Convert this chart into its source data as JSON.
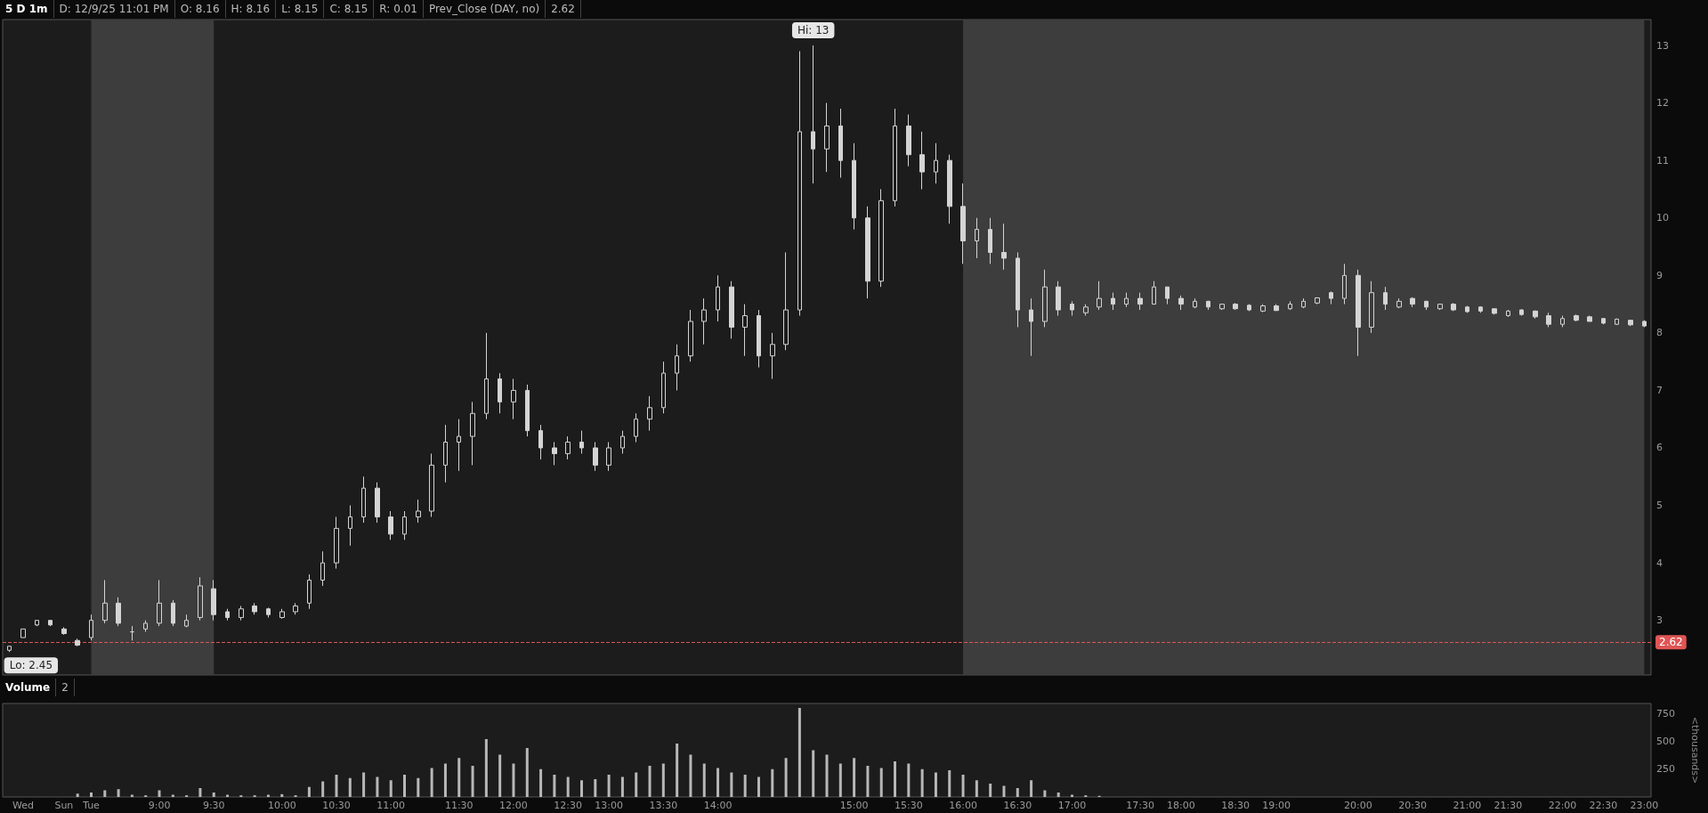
{
  "chart_data": [
    {
      "type": "candlestick",
      "title": "5 D 1m",
      "annotations": [
        "D: 12/9/25 11:01 PM",
        "O: 8.16",
        "H: 8.16",
        "L: 8.15",
        "C: 8.15",
        "R: 0.01",
        "Prev_Close (DAY, no)",
        "2.62",
        {
          "text": "Hi: 13",
          "y": 13
        },
        "Lo: 2.45"
      ],
      "categories": [
        null,
        "Wed",
        null,
        null,
        "Sun",
        null,
        "Tue",
        null,
        null,
        null,
        null,
        "9:00",
        null,
        null,
        null,
        "9:30",
        null,
        null,
        null,
        null,
        "10:00",
        null,
        null,
        null,
        "10:30",
        null,
        null,
        null,
        "11:00",
        null,
        null,
        null,
        null,
        "11:30",
        null,
        null,
        null,
        "12:00",
        null,
        null,
        null,
        "12:30",
        null,
        null,
        "13:00",
        null,
        null,
        null,
        "13:30",
        null,
        null,
        null,
        "14:00",
        null,
        null,
        null,
        null,
        null,
        null,
        null,
        null,
        null,
        "15:00",
        null,
        null,
        null,
        "15:30",
        null,
        null,
        null,
        "16:00",
        null,
        null,
        null,
        "16:30",
        null,
        null,
        null,
        "17:00",
        null,
        null,
        null,
        null,
        "17:30",
        null,
        null,
        "18:00",
        null,
        null,
        null,
        "18:30",
        null,
        null,
        "19:00",
        null,
        null,
        null,
        null,
        null,
        "20:00",
        null,
        null,
        null,
        "20:30",
        null,
        null,
        null,
        "21:00",
        null,
        null,
        "21:30",
        null,
        null,
        null,
        "22:00",
        null,
        null,
        "22:30",
        null,
        null,
        "23:00"
      ],
      "ohlc": [
        [
          2.48,
          2.55,
          2.45,
          2.55
        ],
        [
          2.7,
          2.85,
          2.7,
          2.85
        ],
        [
          2.92,
          3.0,
          2.9,
          3.0
        ],
        [
          3.0,
          3.0,
          2.9,
          2.92
        ],
        [
          2.85,
          2.88,
          2.75,
          2.77
        ],
        [
          2.65,
          2.68,
          2.55,
          2.57
        ],
        [
          2.7,
          3.1,
          2.65,
          3.0
        ],
        [
          3.0,
          3.7,
          2.95,
          3.3
        ],
        [
          3.3,
          3.4,
          2.9,
          2.95
        ],
        [
          2.8,
          2.9,
          2.65,
          2.8
        ],
        [
          2.85,
          3.0,
          2.8,
          2.95
        ],
        [
          2.95,
          3.7,
          2.9,
          3.3
        ],
        [
          3.3,
          3.35,
          2.9,
          2.95
        ],
        [
          2.9,
          3.1,
          2.88,
          3.0
        ],
        [
          3.05,
          3.75,
          3.0,
          3.6
        ],
        [
          3.55,
          3.7,
          3.0,
          3.1
        ],
        [
          3.15,
          3.2,
          3.0,
          3.05
        ],
        [
          3.05,
          3.25,
          3.0,
          3.2
        ],
        [
          3.25,
          3.3,
          3.1,
          3.15
        ],
        [
          3.2,
          3.22,
          3.05,
          3.1
        ],
        [
          3.05,
          3.2,
          3.03,
          3.15
        ],
        [
          3.15,
          3.3,
          3.1,
          3.25
        ],
        [
          3.3,
          3.8,
          3.2,
          3.7
        ],
        [
          3.7,
          4.2,
          3.6,
          4.0
        ],
        [
          4.0,
          4.8,
          3.9,
          4.6
        ],
        [
          4.6,
          5.0,
          4.3,
          4.8
        ],
        [
          4.8,
          5.5,
          4.7,
          5.3
        ],
        [
          5.3,
          5.4,
          4.7,
          4.8
        ],
        [
          4.8,
          4.9,
          4.4,
          4.5
        ],
        [
          4.5,
          4.9,
          4.4,
          4.8
        ],
        [
          4.8,
          5.1,
          4.7,
          4.9
        ],
        [
          4.9,
          5.9,
          4.8,
          5.7
        ],
        [
          5.7,
          6.4,
          5.4,
          6.1
        ],
        [
          6.1,
          6.5,
          5.6,
          6.2
        ],
        [
          6.2,
          6.8,
          5.7,
          6.6
        ],
        [
          6.6,
          8.0,
          6.5,
          7.2
        ],
        [
          7.2,
          7.3,
          6.6,
          6.8
        ],
        [
          6.8,
          7.2,
          6.5,
          7.0
        ],
        [
          7.0,
          7.1,
          6.2,
          6.3
        ],
        [
          6.3,
          6.4,
          5.8,
          6.0
        ],
        [
          6.0,
          6.1,
          5.7,
          5.9
        ],
        [
          5.9,
          6.2,
          5.8,
          6.1
        ],
        [
          6.1,
          6.3,
          5.9,
          6.0
        ],
        [
          6.0,
          6.1,
          5.6,
          5.7
        ],
        [
          5.7,
          6.1,
          5.6,
          6.0
        ],
        [
          6.0,
          6.3,
          5.9,
          6.2
        ],
        [
          6.2,
          6.6,
          6.1,
          6.5
        ],
        [
          6.5,
          6.9,
          6.3,
          6.7
        ],
        [
          6.7,
          7.5,
          6.6,
          7.3
        ],
        [
          7.3,
          7.8,
          7.0,
          7.6
        ],
        [
          7.6,
          8.4,
          7.5,
          8.2
        ],
        [
          8.2,
          8.6,
          7.8,
          8.4
        ],
        [
          8.4,
          9.0,
          8.2,
          8.8
        ],
        [
          8.8,
          8.9,
          7.9,
          8.1
        ],
        [
          8.1,
          8.5,
          7.6,
          8.3
        ],
        [
          8.3,
          8.4,
          7.4,
          7.6
        ],
        [
          7.6,
          8.0,
          7.2,
          7.8
        ],
        [
          7.8,
          9.4,
          7.7,
          8.4
        ],
        [
          8.4,
          12.9,
          8.3,
          11.5
        ],
        [
          11.5,
          13.0,
          10.6,
          11.2
        ],
        [
          11.2,
          12.0,
          10.8,
          11.6
        ],
        [
          11.6,
          11.9,
          10.7,
          11.0
        ],
        [
          11.0,
          11.3,
          9.8,
          10.0
        ],
        [
          10.0,
          10.2,
          8.6,
          8.9
        ],
        [
          8.9,
          10.5,
          8.8,
          10.3
        ],
        [
          10.3,
          11.9,
          10.2,
          11.6
        ],
        [
          11.6,
          11.8,
          10.9,
          11.1
        ],
        [
          11.1,
          11.5,
          10.5,
          10.8
        ],
        [
          10.8,
          11.3,
          10.6,
          11.0
        ],
        [
          11.0,
          11.1,
          9.9,
          10.2
        ],
        [
          10.2,
          10.6,
          9.2,
          9.6
        ],
        [
          9.6,
          10.0,
          9.3,
          9.8
        ],
        [
          9.8,
          10.0,
          9.2,
          9.4
        ],
        [
          9.4,
          9.9,
          9.1,
          9.3
        ],
        [
          9.3,
          9.4,
          8.1,
          8.4
        ],
        [
          8.4,
          8.6,
          7.6,
          8.2
        ],
        [
          8.2,
          9.1,
          8.1,
          8.8
        ],
        [
          8.8,
          8.9,
          8.3,
          8.4
        ],
        [
          8.5,
          8.55,
          8.3,
          8.4
        ],
        [
          8.35,
          8.5,
          8.3,
          8.45
        ],
        [
          8.45,
          8.9,
          8.4,
          8.6
        ],
        [
          8.6,
          8.7,
          8.4,
          8.5
        ],
        [
          8.5,
          8.7,
          8.45,
          8.6
        ],
        [
          8.6,
          8.7,
          8.4,
          8.5
        ],
        [
          8.5,
          8.9,
          8.5,
          8.8
        ],
        [
          8.8,
          8.8,
          8.5,
          8.6
        ],
        [
          8.6,
          8.65,
          8.4,
          8.5
        ],
        [
          8.45,
          8.6,
          8.43,
          8.55
        ],
        [
          8.55,
          8.56,
          8.4,
          8.45
        ],
        [
          8.42,
          8.5,
          8.4,
          8.5
        ],
        [
          8.5,
          8.52,
          8.4,
          8.42
        ],
        [
          8.48,
          8.5,
          8.38,
          8.4
        ],
        [
          8.38,
          8.5,
          8.36,
          8.47
        ],
        [
          8.47,
          8.5,
          8.38,
          8.39
        ],
        [
          8.42,
          8.55,
          8.4,
          8.5
        ],
        [
          8.45,
          8.6,
          8.43,
          8.55
        ],
        [
          8.52,
          8.62,
          8.5,
          8.61
        ],
        [
          8.7,
          8.72,
          8.5,
          8.6
        ],
        [
          8.6,
          9.2,
          8.5,
          9.0
        ],
        [
          9.0,
          9.1,
          7.6,
          8.1
        ],
        [
          8.1,
          8.9,
          8.0,
          8.7
        ],
        [
          8.7,
          8.8,
          8.4,
          8.5
        ],
        [
          8.45,
          8.6,
          8.43,
          8.55
        ],
        [
          8.6,
          8.62,
          8.45,
          8.5
        ],
        [
          8.55,
          8.56,
          8.4,
          8.45
        ],
        [
          8.42,
          8.5,
          8.4,
          8.5
        ],
        [
          8.5,
          8.52,
          8.38,
          8.4
        ],
        [
          8.45,
          8.47,
          8.35,
          8.37
        ],
        [
          8.45,
          8.46,
          8.35,
          8.38
        ],
        [
          8.42,
          8.43,
          8.32,
          8.34
        ],
        [
          8.3,
          8.4,
          8.28,
          8.38
        ],
        [
          8.4,
          8.41,
          8.3,
          8.32
        ],
        [
          8.38,
          8.39,
          8.25,
          8.28
        ],
        [
          8.3,
          8.35,
          8.1,
          8.15
        ],
        [
          8.15,
          8.3,
          8.1,
          8.25
        ],
        [
          8.3,
          8.32,
          8.2,
          8.22
        ],
        [
          8.28,
          8.3,
          8.2,
          8.2
        ],
        [
          8.25,
          8.26,
          8.15,
          8.17
        ],
        [
          8.15,
          8.25,
          8.14,
          8.24
        ],
        [
          8.22,
          8.23,
          8.12,
          8.14
        ],
        [
          8.2,
          8.22,
          8.1,
          8.12
        ]
      ],
      "color": "#d4d4d4",
      "ylim": [
        2.05,
        13.45
      ],
      "yticks": [
        3,
        4,
        5,
        6,
        7,
        8,
        9,
        10,
        11,
        12,
        13
      ],
      "tick_labels": "y",
      "ref_lines": [
        {
          "axis": "y",
          "value": 2.62,
          "label": "2.62",
          "color": "#e05555",
          "line_style": "dashed"
        }
      ],
      "bands": [
        {
          "axis": "x",
          "from": "Tue",
          "to": "9:30",
          "color": "#3d3d3d"
        },
        {
          "axis": "x",
          "from": "16:00",
          "to": "23:00",
          "color": "#3d3d3d"
        }
      ]
    },
    {
      "type": "bar",
      "title": "Volume",
      "annotations": [
        "2"
      ],
      "ylabel": "<thousands>",
      "categories": [
        null,
        "Wed",
        null,
        null,
        "Sun",
        null,
        "Tue",
        null,
        null,
        null,
        null,
        "9:00",
        null,
        null,
        null,
        "9:30",
        null,
        null,
        null,
        null,
        "10:00",
        null,
        null,
        null,
        "10:30",
        null,
        null,
        null,
        "11:00",
        null,
        null,
        null,
        null,
        "11:30",
        null,
        null,
        null,
        "12:00",
        null,
        null,
        null,
        "12:30",
        null,
        null,
        "13:00",
        null,
        null,
        null,
        "13:30",
        null,
        null,
        null,
        "14:00",
        null,
        null,
        null,
        null,
        null,
        null,
        null,
        null,
        null,
        "15:00",
        null,
        null,
        null,
        "15:30",
        null,
        null,
        null,
        "16:00",
        null,
        null,
        null,
        "16:30",
        null,
        null,
        null,
        "17:00",
        null,
        null,
        null,
        null,
        "17:30",
        null,
        null,
        "18:00",
        null,
        null,
        null,
        "18:30",
        null,
        null,
        "19:00",
        null,
        null,
        null,
        null,
        null,
        "20:00",
        null,
        null,
        null,
        "20:30",
        null,
        null,
        null,
        "21:00",
        null,
        null,
        "21:30",
        null,
        null,
        null,
        "22:00",
        null,
        null,
        "22:30",
        null,
        null,
        "23:00"
      ],
      "values": [
        null,
        null,
        null,
        null,
        null,
        30,
        40,
        60,
        70,
        20,
        15,
        60,
        20,
        15,
        80,
        40,
        20,
        15,
        15,
        20,
        25,
        15,
        90,
        140,
        200,
        170,
        220,
        180,
        150,
        200,
        170,
        260,
        300,
        350,
        280,
        520,
        380,
        300,
        440,
        250,
        200,
        180,
        150,
        160,
        200,
        180,
        220,
        280,
        300,
        480,
        380,
        300,
        260,
        220,
        200,
        180,
        250,
        350,
        800,
        420,
        380,
        300,
        350,
        280,
        260,
        320,
        300,
        250,
        220,
        240,
        200,
        150,
        120,
        100,
        80,
        150,
        60,
        40,
        20,
        15,
        10,
        null,
        null,
        null,
        null,
        null,
        null,
        null,
        null,
        null,
        null,
        null,
        null,
        null,
        null,
        null,
        null,
        null,
        null,
        null,
        null,
        null,
        null,
        null,
        null,
        null,
        null,
        null,
        null,
        null,
        null,
        null,
        null,
        null,
        null,
        null,
        null,
        null,
        null,
        null,
        null
      ],
      "color": "#b8b8b8",
      "ylim": [
        0,
        840
      ],
      "yticks": [
        250,
        500,
        750
      ]
    }
  ]
}
